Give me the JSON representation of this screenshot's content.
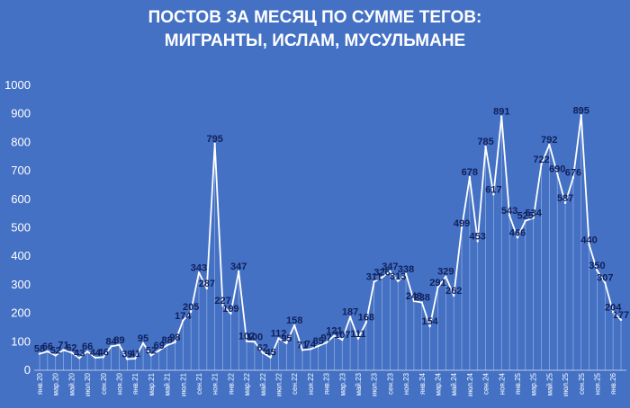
{
  "chart_data": {
    "type": "line",
    "title_line1": "ПОСТОВ ЗА МЕСЯЦ ПО СУММЕ ТЕГОВ:",
    "title_line2": "МИГРАНТЫ, ИСЛАМ, МУСУЛЬМАНЕ",
    "xlabel": "",
    "ylabel": "",
    "ylim": [
      0,
      1000
    ],
    "yticks": [
      0,
      100,
      200,
      300,
      400,
      500,
      600,
      700,
      800,
      900,
      1000
    ],
    "grid": false,
    "legend": "none",
    "x": [
      "янв.20",
      "фев.20",
      "мар.20",
      "апр.20",
      "май.20",
      "июн.20",
      "июл.20",
      "авг.20",
      "сен.20",
      "окт.20",
      "ноя.20",
      "дек.20",
      "янв.21",
      "фев.21",
      "мар.21",
      "апр.21",
      "май.21",
      "июн.21",
      "июл.21",
      "авг.21",
      "сен.21",
      "окт.21",
      "ноя.21",
      "дек.21",
      "янв.22",
      "фев.22",
      "мар.22",
      "апр.22",
      "май.22",
      "июн.22",
      "июл.22",
      "авг.22",
      "сен.22",
      "окт.22",
      "ноя.22",
      "дек.22",
      "янв.23",
      "фев.23",
      "мар.23",
      "апр.23",
      "май.23",
      "июн.23",
      "июл.23",
      "авг.23",
      "сен.23",
      "окт.23",
      "ноя.23",
      "дек.23",
      "янв.24",
      "фев.24",
      "мар.24",
      "апр.24",
      "май.24",
      "июн.24",
      "июл.24",
      "авг.24",
      "сен.24",
      "окт.24",
      "ноя.24",
      "дек.24",
      "янв.25",
      "фев.25",
      "мар.25",
      "апр.25",
      "май.25",
      "июн.25",
      "июл.25",
      "авг.25",
      "сен.25",
      "окт.25",
      "ноя.25",
      "дек.25",
      "янв.26",
      "фев.26"
    ],
    "x_tick_labels": [
      "янв.20",
      "мар.20",
      "май.20",
      "июл.20",
      "сен.20",
      "ноя.20",
      "янв.21",
      "мар.21",
      "май.21",
      "июл.21",
      "сен.21",
      "ноя.21",
      "янв.22",
      "мар.22",
      "май.22",
      "июл.22",
      "сен.22",
      "ноя.22",
      "янв.23",
      "мар.23",
      "май.23",
      "июл.23",
      "сен.23",
      "ноя.23",
      "янв.24",
      "мар.24",
      "май.24",
      "июл.24",
      "сен.24",
      "ноя.24",
      "янв.25",
      "мар.25",
      "май.25",
      "июл.25",
      "сен.25",
      "ноя.25",
      "янв.26"
    ],
    "values": [
      58,
      66,
      52,
      71,
      62,
      43,
      66,
      44,
      46,
      84,
      89,
      39,
      41,
      95,
      52,
      69,
      88,
      98,
      174,
      205,
      343,
      287,
      795,
      227,
      199,
      347,
      102,
      100,
      62,
      45,
      112,
      95,
      158,
      71,
      74,
      85,
      97,
      121,
      107,
      187,
      111,
      168,
      311,
      326,
      347,
      313,
      338,
      243,
      238,
      154,
      291,
      329,
      262,
      499,
      678,
      453,
      785,
      617,
      891,
      543,
      466,
      525,
      534,
      722,
      792,
      690,
      587,
      676,
      895,
      440,
      350,
      307,
      204,
      177
    ],
    "line_color": "#ffffff",
    "background_color": "#4471c4",
    "label_color": "#10205a"
  }
}
